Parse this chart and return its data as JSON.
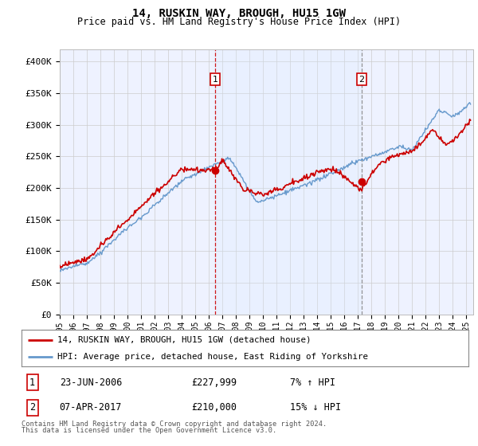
{
  "title": "14, RUSKIN WAY, BROUGH, HU15 1GW",
  "subtitle": "Price paid vs. HM Land Registry's House Price Index (HPI)",
  "ylabel_ticks": [
    "£0",
    "£50K",
    "£100K",
    "£150K",
    "£200K",
    "£250K",
    "£300K",
    "£350K",
    "£400K"
  ],
  "ylim": [
    0,
    420000
  ],
  "yticks": [
    0,
    50000,
    100000,
    150000,
    200000,
    250000,
    300000,
    350000,
    400000
  ],
  "xlim_start": 1995.0,
  "xlim_end": 2025.5,
  "sale1_x": 2006.47,
  "sale1_y": 227999,
  "sale1_label": "23-JUN-2006",
  "sale1_price": "£227,999",
  "sale1_hpi": "7% ↑ HPI",
  "sale2_x": 2017.27,
  "sale2_y": 210000,
  "sale2_label": "07-APR-2017",
  "sale2_price": "£210,000",
  "sale2_hpi": "15% ↓ HPI",
  "property_line_color": "#cc0000",
  "hpi_line_color": "#6699cc",
  "hpi_fill_color": "#ddeeff",
  "background_color": "#eef2ff",
  "grid_color": "#cccccc",
  "legend1_label": "14, RUSKIN WAY, BROUGH, HU15 1GW (detached house)",
  "legend2_label": "HPI: Average price, detached house, East Riding of Yorkshire",
  "footer": "Contains HM Land Registry data © Crown copyright and database right 2024.\nThis data is licensed under the Open Government Licence v3.0.",
  "marker1_num": "1",
  "marker2_num": "2"
}
